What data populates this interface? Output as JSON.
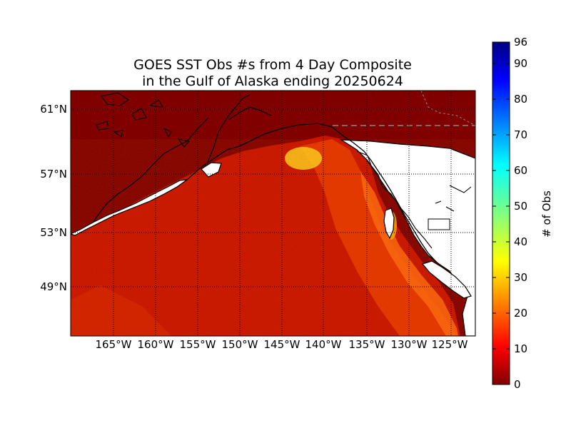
{
  "title": {
    "line1": "GOES SST Obs #s from 4 Day Composite",
    "line2": "in the Gulf of Alaska ending 20250624"
  },
  "chart_data": {
    "type": "heatmap",
    "lon_ticks": [
      "165°W",
      "160°W",
      "155°W",
      "150°W",
      "145°W",
      "140°W",
      "135°W",
      "130°W",
      "125°W"
    ],
    "lat_ticks": [
      "61°N",
      "57°N",
      "53°N",
      "49°N"
    ],
    "colorbar": {
      "label": "# of Obs",
      "ticks": [
        "0",
        "10",
        "20",
        "30",
        "40",
        "50",
        "60",
        "70",
        "80",
        "90",
        "96"
      ],
      "min": 0,
      "max": 96,
      "colormap": "jet"
    },
    "grid": true
  },
  "colors": {
    "ocean_low": "#800000",
    "ocean_mid": "#ff3000",
    "ocean_high": "#ffdc2a",
    "land": "#ffffff",
    "coast": "#000000"
  }
}
